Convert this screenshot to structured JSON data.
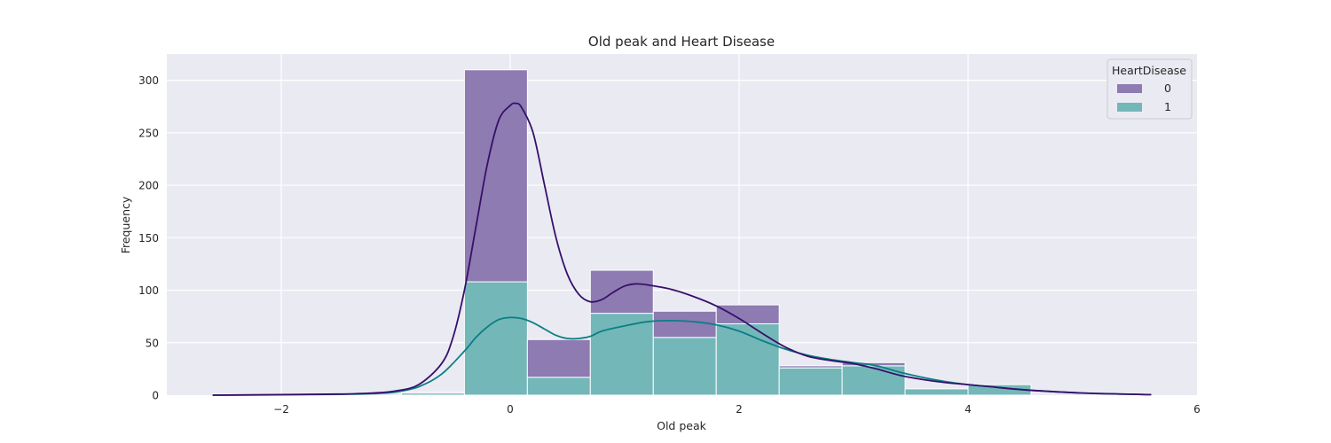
{
  "chart_data": {
    "type": "histogram",
    "stacked": true,
    "title": "Old peak and Heart Disease",
    "xlabel": "Old peak",
    "ylabel": "Frequency",
    "xlim": [
      -3.0,
      6.0
    ],
    "ylim": [
      0,
      325
    ],
    "xticks": [
      {
        "value": -2,
        "label": "−2"
      },
      {
        "value": 0,
        "label": "0"
      },
      {
        "value": 2,
        "label": "2"
      },
      {
        "value": 4,
        "label": "4"
      },
      {
        "value": 6,
        "label": "6"
      }
    ],
    "yticks": [
      {
        "value": 0,
        "label": "0"
      },
      {
        "value": 50,
        "label": "50"
      },
      {
        "value": 100,
        "label": "100"
      },
      {
        "value": 150,
        "label": "150"
      },
      {
        "value": 200,
        "label": "200"
      },
      {
        "value": 250,
        "label": "250"
      },
      {
        "value": 300,
        "label": "300"
      }
    ],
    "grid": true,
    "legend": {
      "title": "HeartDisease",
      "placement": "top-right"
    },
    "bin_edges": [
      -2.6,
      -2.05,
      -1.5,
      -0.95,
      -0.4,
      0.15,
      0.7,
      1.25,
      1.8,
      2.35,
      2.9,
      3.45,
      4.0,
      4.55
    ],
    "series": [
      {
        "name": "0",
        "color": "#8e7bb1",
        "values": [
          0,
          0,
          0,
          1,
          202,
          36,
          41,
          25,
          18,
          2,
          3,
          0,
          0
        ]
      },
      {
        "name": "1",
        "color": "#74b7b9",
        "values": [
          1,
          0,
          0,
          2,
          108,
          17,
          78,
          55,
          68,
          26,
          28,
          6,
          10
        ]
      }
    ],
    "kde": [
      {
        "name": "0",
        "color": "#36106b",
        "x": [
          -2.6,
          -2.0,
          -1.5,
          -1.2,
          -1.0,
          -0.8,
          -0.6,
          -0.5,
          -0.4,
          -0.3,
          -0.2,
          -0.1,
          0.0,
          0.05,
          0.1,
          0.2,
          0.3,
          0.4,
          0.5,
          0.6,
          0.7,
          0.8,
          0.9,
          1.0,
          1.1,
          1.2,
          1.4,
          1.6,
          1.8,
          2.0,
          2.2,
          2.4,
          2.6,
          2.8,
          3.0,
          3.2,
          3.4,
          3.6,
          3.8,
          4.0,
          4.2,
          4.5,
          5.0,
          5.6
        ],
        "y": [
          0,
          0.5,
          1,
          2,
          4,
          10,
          30,
          55,
          100,
          160,
          220,
          262,
          276,
          278,
          274,
          250,
          200,
          150,
          115,
          96,
          89,
          91,
          98,
          104,
          106,
          105,
          101,
          94,
          85,
          73,
          59,
          46,
          37,
          33,
          30,
          25,
          19,
          15,
          12,
          10,
          8,
          5,
          2,
          0.5
        ]
      },
      {
        "name": "1",
        "color": "#0b7f83",
        "x": [
          -2.6,
          -2.0,
          -1.5,
          -1.2,
          -1.0,
          -0.8,
          -0.6,
          -0.4,
          -0.3,
          -0.2,
          -0.1,
          0.0,
          0.1,
          0.2,
          0.3,
          0.4,
          0.5,
          0.6,
          0.7,
          0.8,
          1.0,
          1.2,
          1.4,
          1.6,
          1.8,
          2.0,
          2.2,
          2.4,
          2.6,
          2.8,
          3.0,
          3.2,
          3.4,
          3.6,
          3.8,
          4.0,
          4.2,
          4.5,
          5.0,
          5.6
        ],
        "y": [
          0,
          0.3,
          0.8,
          1.5,
          3,
          8,
          20,
          42,
          55,
          65,
          72,
          74,
          73,
          69,
          63,
          57,
          54,
          54,
          56,
          61,
          66,
          70,
          71,
          70,
          67,
          61,
          52,
          44,
          38,
          34,
          31,
          28,
          22,
          17,
          13,
          10,
          8,
          5,
          2,
          0.5
        ]
      }
    ]
  }
}
